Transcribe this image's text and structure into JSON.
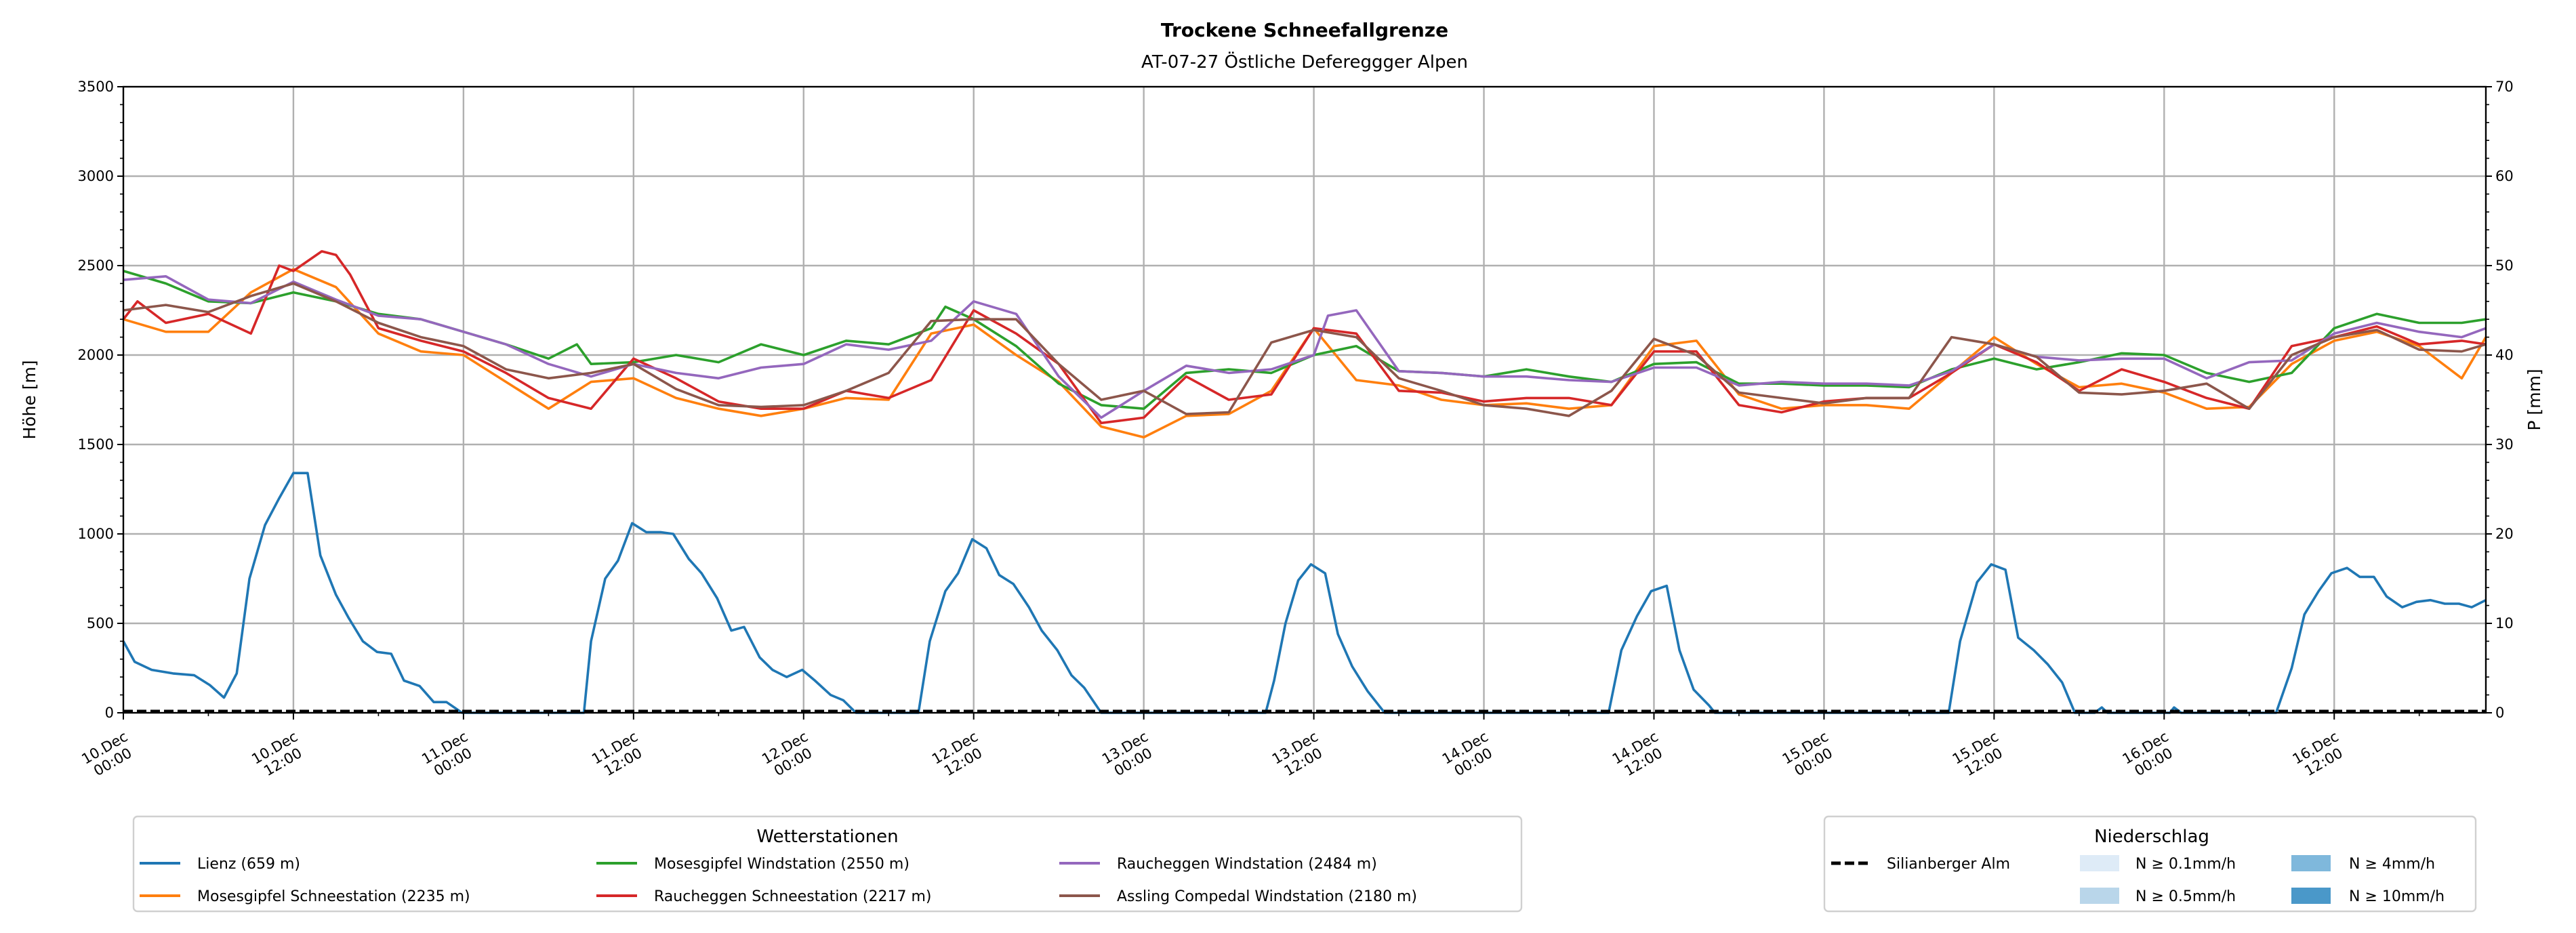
{
  "chart_data": {
    "type": "line",
    "title": "Trockene Schneefallgrenze",
    "subtitle": "AT-07-27 Östliche Defereggger Alpen",
    "ylabel": "Höhe [m]",
    "y2label": "P [mm]",
    "ylim": [
      0,
      3500
    ],
    "y2lim": [
      0,
      70
    ],
    "xlim_hours": [
      0,
      166.7
    ],
    "grid": true,
    "yticks": [
      0,
      500,
      1000,
      1500,
      2000,
      2500,
      3000,
      3500
    ],
    "y2ticks": [
      0,
      10,
      20,
      30,
      40,
      50,
      60,
      70
    ],
    "xticks": [
      {
        "h": 0,
        "l1": "10.Dec",
        "l2": "00:00"
      },
      {
        "h": 12,
        "l1": "10.Dec",
        "l2": "12:00"
      },
      {
        "h": 24,
        "l1": "11.Dec",
        "l2": "00:00"
      },
      {
        "h": 36,
        "l1": "11.Dec",
        "l2": "12:00"
      },
      {
        "h": 48,
        "l1": "12.Dec",
        "l2": "00:00"
      },
      {
        "h": 60,
        "l1": "12.Dec",
        "l2": "12:00"
      },
      {
        "h": 72,
        "l1": "13.Dec",
        "l2": "00:00"
      },
      {
        "h": 84,
        "l1": "13.Dec",
        "l2": "12:00"
      },
      {
        "h": 96,
        "l1": "14.Dec",
        "l2": "00:00"
      },
      {
        "h": 108,
        "l1": "14.Dec",
        "l2": "12:00"
      },
      {
        "h": 120,
        "l1": "15.Dec",
        "l2": "00:00"
      },
      {
        "h": 132,
        "l1": "15.Dec",
        "l2": "12:00"
      },
      {
        "h": 144,
        "l1": "16.Dec",
        "l2": "00:00"
      },
      {
        "h": 156,
        "l1": "16.Dec",
        "l2": "12:00"
      }
    ],
    "x_step_hours": 3,
    "series": [
      {
        "name": "Lienz (659 m)",
        "color": "#1f77b4",
        "points": [
          [
            0,
            400
          ],
          [
            0.8,
            285
          ],
          [
            2,
            240
          ],
          [
            3.5,
            220
          ],
          [
            5,
            210
          ],
          [
            6.1,
            155
          ],
          [
            7.1,
            85
          ],
          [
            8,
            220
          ],
          [
            8.9,
            750
          ],
          [
            10,
            1050
          ],
          [
            11,
            1200
          ],
          [
            12,
            1340
          ],
          [
            13,
            1340
          ],
          [
            13.9,
            880
          ],
          [
            15,
            660
          ],
          [
            15.9,
            530
          ],
          [
            16.9,
            400
          ],
          [
            17.9,
            340
          ],
          [
            18.9,
            330
          ],
          [
            19.8,
            180
          ],
          [
            20.9,
            150
          ],
          [
            21.9,
            60
          ],
          [
            22.8,
            60
          ],
          [
            23.9,
            0
          ],
          [
            32.5,
            0
          ],
          [
            33,
            400
          ],
          [
            34,
            750
          ],
          [
            34.9,
            850
          ],
          [
            35.9,
            1060
          ],
          [
            36.9,
            1010
          ],
          [
            37.9,
            1010
          ],
          [
            38.8,
            1000
          ],
          [
            39.9,
            860
          ],
          [
            40.8,
            780
          ],
          [
            41.9,
            640
          ],
          [
            42.9,
            460
          ],
          [
            43.8,
            480
          ],
          [
            44.9,
            310
          ],
          [
            45.8,
            240
          ],
          [
            46.8,
            200
          ],
          [
            47.9,
            240
          ],
          [
            48.8,
            180
          ],
          [
            49.9,
            100
          ],
          [
            50.8,
            70
          ],
          [
            51.7,
            0
          ],
          [
            56.1,
            0
          ],
          [
            56.9,
            400
          ],
          [
            58,
            680
          ],
          [
            58.9,
            780
          ],
          [
            59.9,
            970
          ],
          [
            60.9,
            920
          ],
          [
            61.8,
            770
          ],
          [
            62.8,
            720
          ],
          [
            63.9,
            590
          ],
          [
            64.8,
            460
          ],
          [
            65.9,
            350
          ],
          [
            66.9,
            210
          ],
          [
            67.8,
            140
          ],
          [
            69,
            0
          ],
          [
            80.6,
            0
          ],
          [
            81.2,
            180
          ],
          [
            82,
            500
          ],
          [
            82.9,
            740
          ],
          [
            83.8,
            830
          ],
          [
            84.8,
            780
          ],
          [
            85.7,
            440
          ],
          [
            86.7,
            260
          ],
          [
            87.8,
            120
          ],
          [
            88.8,
            20
          ],
          [
            89,
            0
          ],
          [
            104.8,
            0
          ],
          [
            105.7,
            350
          ],
          [
            106.8,
            540
          ],
          [
            107.8,
            680
          ],
          [
            108.9,
            710
          ],
          [
            109.8,
            350
          ],
          [
            110.8,
            130
          ],
          [
            111.9,
            40
          ],
          [
            112.3,
            0
          ],
          [
            128.8,
            0
          ],
          [
            129.6,
            400
          ],
          [
            130.8,
            730
          ],
          [
            131.8,
            830
          ],
          [
            132.8,
            800
          ],
          [
            133.7,
            420
          ],
          [
            134.8,
            350
          ],
          [
            135.8,
            270
          ],
          [
            136.8,
            170
          ],
          [
            137.7,
            0
          ],
          [
            139.1,
            0
          ],
          [
            139.6,
            30
          ],
          [
            140,
            0
          ],
          [
            144.4,
            0
          ],
          [
            144.7,
            30
          ],
          [
            145.2,
            0
          ],
          [
            151.9,
            0
          ],
          [
            153,
            250
          ],
          [
            153.9,
            550
          ],
          [
            154.9,
            680
          ],
          [
            155.8,
            780
          ],
          [
            156.9,
            810
          ],
          [
            157.8,
            760
          ],
          [
            158.8,
            760
          ],
          [
            159.7,
            650
          ],
          [
            160.8,
            590
          ],
          [
            161.8,
            620
          ],
          [
            162.8,
            630
          ],
          [
            163.8,
            610
          ],
          [
            164.8,
            610
          ],
          [
            165.7,
            590
          ],
          [
            166.7,
            630
          ]
        ]
      },
      {
        "name": "Mosesgipfel Schneestation (2235 m)",
        "color": "#ff7f0e",
        "values": [
          2200,
          2130,
          2130,
          2350,
          2480,
          2380,
          2120,
          2020,
          2000,
          1850,
          1700,
          1850,
          1870,
          1760,
          1700,
          1660,
          1700,
          1760,
          1750,
          2120,
          2170,
          2000,
          1850,
          1600,
          1540,
          1660,
          1670,
          1800,
          2150,
          1860,
          1830,
          1750,
          1720,
          1730,
          1700,
          1720,
          2050,
          2080,
          1780,
          1700,
          1720,
          1720,
          1700,
          1900,
          2100,
          1950,
          1820,
          1840,
          1790,
          1700,
          1710,
          1950,
          2080,
          2130,
          2050,
          1870,
          2100
        ],
        "extra_points": []
      },
      {
        "name": "Mosesgipfel Windstation (2550 m)",
        "color": "#2ca02c",
        "values": [
          2470,
          2400,
          2300,
          2290,
          2350,
          2300,
          2230,
          2200,
          2130,
          2060,
          1980,
          1950,
          1960,
          2000,
          1960,
          2060,
          2000,
          2080,
          2060,
          2150,
          2200,
          2050,
          1840,
          1720,
          1700,
          1900,
          1920,
          1900,
          2000,
          2050,
          1910,
          1900,
          1880,
          1920,
          1880,
          1850,
          1950,
          1960,
          1840,
          1840,
          1830,
          1830,
          1820,
          1920,
          1980,
          1920,
          1960,
          2010,
          2000,
          1900,
          1850,
          1900,
          2150,
          2230,
          2180,
          2180,
          2200
        ],
        "extra_points": [
          [
            32,
            2060
          ],
          [
            58,
            2270
          ]
        ]
      },
      {
        "name": "Raucheggen Schneestation (2217 m)",
        "color": "#d62728",
        "values": [
          2200,
          2180,
          2230,
          2120,
          2470,
          2560,
          2150,
          2080,
          2020,
          1900,
          1760,
          1700,
          1980,
          1870,
          1740,
          1700,
          1700,
          1800,
          1760,
          1860,
          2250,
          2120,
          1950,
          1620,
          1650,
          1880,
          1750,
          1780,
          2150,
          2120,
          1800,
          1790,
          1740,
          1760,
          1760,
          1720,
          2020,
          2020,
          1720,
          1680,
          1740,
          1760,
          1760,
          1900,
          2060,
          1960,
          1800,
          1920,
          1850,
          1760,
          1700,
          2050,
          2100,
          2160,
          2060,
          2080,
          2060
        ],
        "extra_points": [
          [
            1,
            2300
          ],
          [
            11,
            2500
          ],
          [
            14,
            2580
          ],
          [
            16,
            2450
          ]
        ]
      },
      {
        "name": "Raucheggen Windstation (2484 m)",
        "color": "#9467bd",
        "values": [
          2420,
          2440,
          2310,
          2290,
          2410,
          2310,
          2220,
          2200,
          2130,
          2060,
          1950,
          1880,
          1950,
          1900,
          1870,
          1930,
          1950,
          2060,
          2030,
          2080,
          2300,
          2230,
          1880,
          1650,
          1800,
          1940,
          1900,
          1920,
          2000,
          2250,
          1910,
          1900,
          1880,
          1880,
          1860,
          1850,
          1930,
          1930,
          1830,
          1850,
          1840,
          1840,
          1830,
          1910,
          2060,
          1990,
          1970,
          1980,
          1980,
          1870,
          1960,
          1970,
          2120,
          2180,
          2130,
          2100,
          2150
        ],
        "extra_points": [
          [
            85,
            2220
          ]
        ]
      },
      {
        "name": "Assling Compedal Windstation (2180 m)",
        "color": "#8c564b",
        "values": [
          2250,
          2280,
          2240,
          2330,
          2400,
          2300,
          2180,
          2100,
          2050,
          1920,
          1870,
          1900,
          1950,
          1810,
          1720,
          1710,
          1720,
          1800,
          1900,
          2190,
          2200,
          2200,
          1950,
          1750,
          1800,
          1670,
          1680,
          2070,
          2140,
          2100,
          1870,
          1800,
          1720,
          1700,
          1660,
          1800,
          2090,
          2000,
          1790,
          1760,
          1730,
          1760,
          1760,
          2100,
          2060,
          1990,
          1790,
          1780,
          1800,
          1840,
          1700,
          2000,
          2100,
          2140,
          2030,
          2020,
          2060
        ],
        "extra_points": []
      }
    ],
    "precip_series": {
      "name": "Silianberger Alm",
      "color": "#000000",
      "value_mm": 0
    },
    "legend_stations": {
      "title": "Wetterstationen",
      "placement": "bottom-left"
    },
    "legend_precip": {
      "title": "Niederschlag",
      "placement": "bottom-right",
      "line_label": "Silianberger Alm",
      "classes": [
        {
          "label": "N ≥ 0.1mm/h",
          "color": "#deebf7"
        },
        {
          "label": "N ≥ 0.5mm/h",
          "color": "#b9d6ea"
        },
        {
          "label": "N ≥ 4mm/h",
          "color": "#7fb8dc"
        },
        {
          "label": "N ≥ 10mm/h",
          "color": "#4a98c9"
        }
      ]
    }
  }
}
